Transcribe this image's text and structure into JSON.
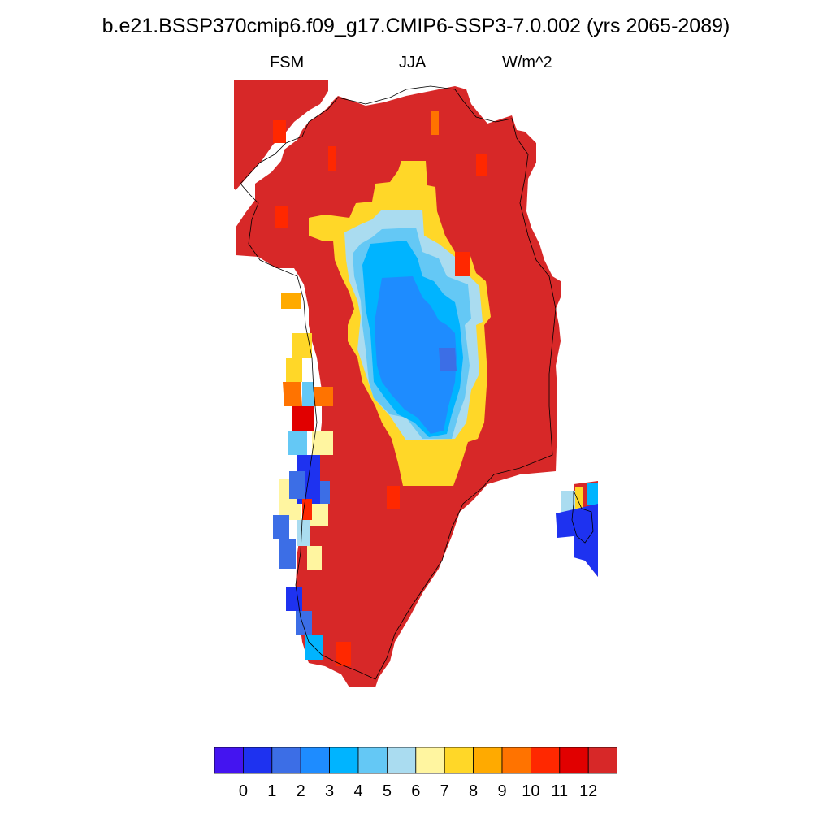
{
  "title": "b.e21.BSSP370cmip6.f09_g17.CMIP6-SSP3-7.0.002 (yrs 2065-2089)",
  "subtitle": {
    "left": "FSM",
    "center": "JJA",
    "right": "W/m^2"
  },
  "colorbar": {
    "colors": [
      "#4414f0",
      "#1e32f0",
      "#3c6ee6",
      "#1e8cff",
      "#00b4ff",
      "#64c8f5",
      "#aadcf0",
      "#fff5a0",
      "#ffd728",
      "#ffaa00",
      "#ff7300",
      "#ff2800",
      "#e10000",
      "#d72828"
    ],
    "tick_labels": [
      "0",
      "1",
      "2",
      "3",
      "4",
      "5",
      "6",
      "7",
      "8",
      "9",
      "10",
      "11",
      "12"
    ]
  },
  "map_colors": {
    "land": "#d72828",
    "coastline": "#000000"
  },
  "icons": [
    "greenland-map"
  ]
}
